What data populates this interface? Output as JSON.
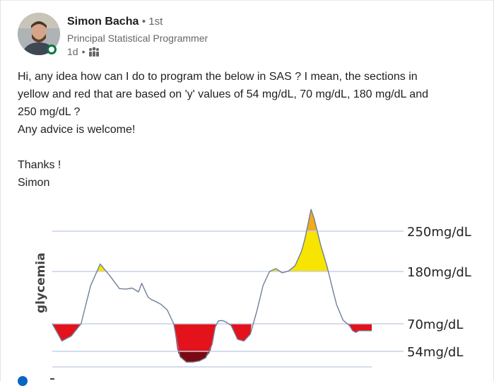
{
  "post": {
    "author_name": "Simon Bacha",
    "degree": "• 1st",
    "headline": "Principal Statistical Programmer",
    "time": "1d",
    "text_lines": [
      "Hi, any idea how can I do to program the below in SAS ? I mean, the sections in",
      "yellow and red that are based on 'y' values of 54 mg/dL, 70 mg/dL, 180 mg/dL and",
      "250 mg/dL ?",
      "Any advice is welcome!",
      "",
      "Thanks !",
      "Simon"
    ]
  },
  "icons": {
    "visibility": "people-icon",
    "presence": "online-status-icon"
  },
  "colors": {
    "yellow": "#f7e400",
    "orange": "#f2aa1e",
    "red": "#e3121b",
    "dark_red": "#7a0a12",
    "threshold_line": "#c7d1e8",
    "curve": "#6f7f98",
    "presence": "#057642"
  },
  "chart_data": {
    "type": "area",
    "ylabel": "glycemia",
    "thresholds": [
      {
        "value": 250,
        "label": "250mg/dL"
      },
      {
        "value": 180,
        "label": "180mg/dL"
      },
      {
        "value": 70,
        "label": "70mg/dL"
      },
      {
        "value": 54,
        "label": "54mg/dL"
      }
    ],
    "ylim": [
      25,
      290
    ],
    "xlim": [
      0,
      100
    ],
    "series": [
      {
        "x": [
          0,
          3,
          6,
          9,
          12,
          15,
          18,
          21,
          23,
          25,
          27,
          28,
          29,
          30,
          31,
          32,
          34,
          36,
          38,
          40,
          42,
          44,
          46,
          48,
          50,
          51,
          52,
          53,
          54,
          56,
          58,
          60,
          62,
          64,
          66,
          68,
          70,
          72,
          74,
          76,
          78,
          79,
          80,
          81,
          82,
          84,
          86,
          88,
          89,
          90,
          91,
          92,
          93,
          94,
          95,
          96,
          97,
          98,
          100
        ],
        "values": [
          70,
          60,
          63,
          70,
          150,
          193,
          171,
          144,
          143,
          145,
          137,
          155,
          140,
          126,
          121,
          118,
          111,
          99,
          70,
          44,
          34,
          34,
          36,
          42,
          58,
          68,
          76,
          77,
          75,
          69,
          61,
          60,
          64,
          96,
          151,
          180,
          185,
          177,
          181,
          190,
          215,
          235,
          258,
          278,
          266,
          226,
          189,
          136,
          110,
          94,
          78,
          72,
          69,
          66,
          65,
          66,
          66,
          66,
          66
        ]
      }
    ]
  }
}
